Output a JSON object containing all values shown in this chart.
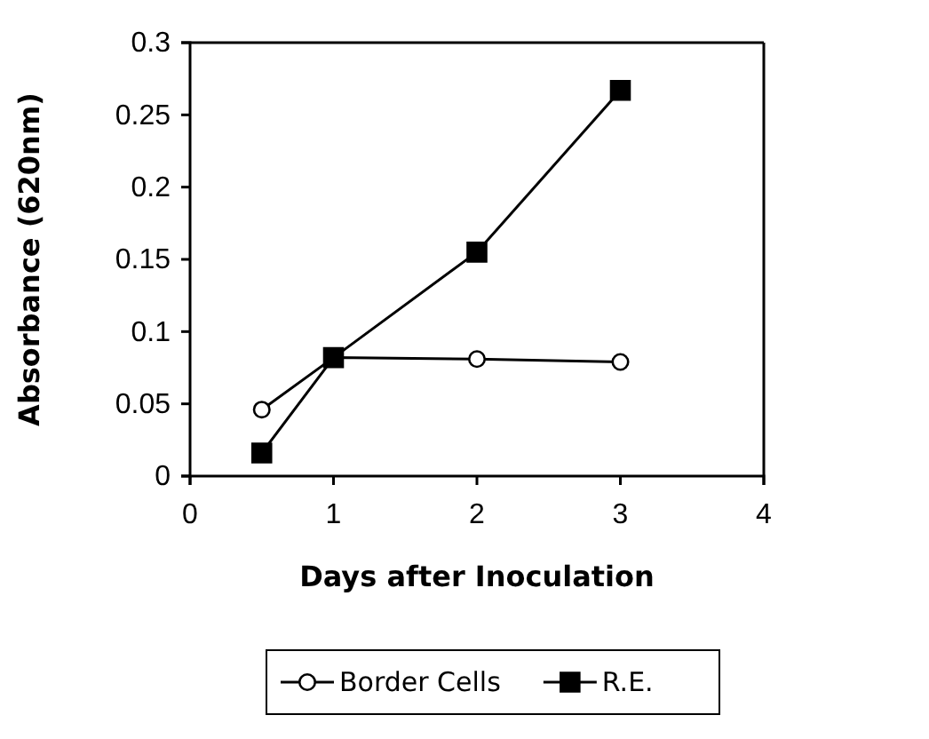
{
  "chart_data": {
    "type": "line",
    "xlabel": "Days after Inoculation",
    "ylabel": "Absorbance (620nm)",
    "x": [
      0.5,
      1,
      2,
      3
    ],
    "series": [
      {
        "name": "Border Cells",
        "color": "#000000",
        "marker": "circle",
        "values": [
          0.046,
          0.082,
          0.081,
          0.079
        ]
      },
      {
        "name": "R.E.",
        "color": "#000000",
        "marker": "square",
        "values": [
          0.016,
          0.082,
          0.155,
          0.267
        ]
      }
    ],
    "xlim": [
      0,
      4
    ],
    "xticks": [
      0,
      1,
      2,
      3,
      4
    ],
    "ylim": [
      0,
      0.3
    ],
    "yticks": [
      0,
      0.05,
      0.1,
      0.15,
      0.2,
      0.25,
      0.3
    ],
    "grid": false,
    "legend": "bottom",
    "line_style": "solid"
  }
}
